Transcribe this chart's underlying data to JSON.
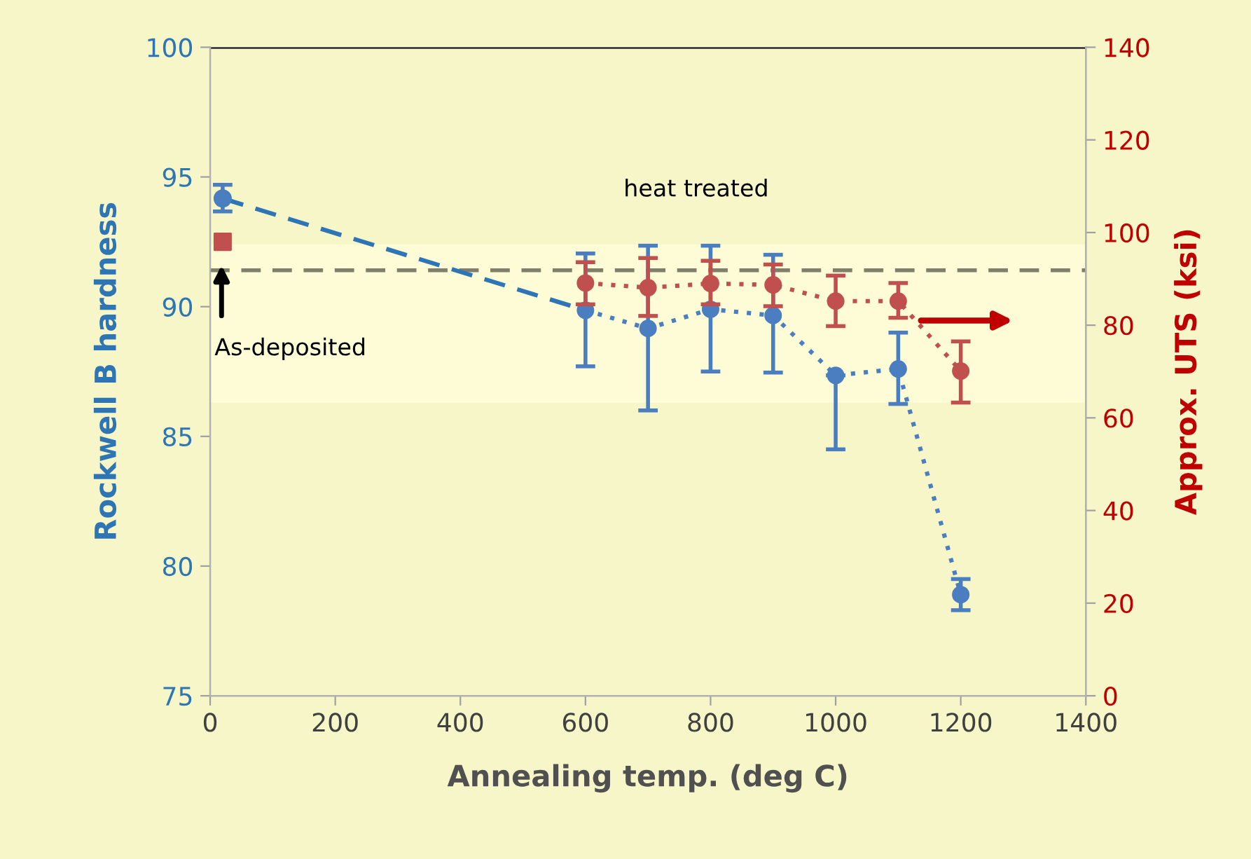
{
  "chart_data": {
    "type": "line",
    "xlabel": "Annealing temp. (deg C)",
    "ylabel": "Rockwell B hardness",
    "y2label": "Approx. UTS (ksi)",
    "xlim": [
      0,
      1400
    ],
    "xticks": [
      0,
      200,
      400,
      600,
      800,
      1000,
      1200,
      1400
    ],
    "ylim": [
      75,
      100
    ],
    "yticks": [
      75,
      80,
      85,
      90,
      95,
      100
    ],
    "y2lim": [
      0,
      140
    ],
    "y2ticks": [
      0,
      20,
      40,
      60,
      80,
      100,
      120,
      140
    ],
    "grid": false,
    "legend": false,
    "series": [
      {
        "type": "line",
        "color": "#2e75b6",
        "x": [
          20,
          600
        ],
        "values": [
          94.17,
          89.86
        ],
        "line_style": "dashed",
        "marker": "none"
      },
      {
        "type": "scatter",
        "color": "#4a7ec0",
        "x": [
          20
        ],
        "values": [
          94.17
        ],
        "errors": [
          [
            93.67,
            94.7
          ]
        ],
        "marker": "circle"
      },
      {
        "color": "#4a7ec0",
        "x": [
          600,
          700,
          800,
          900,
          1000,
          1100,
          1200
        ],
        "values": [
          89.86,
          89.16,
          89.9,
          89.66,
          87.35,
          87.6,
          78.9
        ],
        "errors": [
          [
            87.7,
            92.05
          ],
          [
            86.0,
            92.35
          ],
          [
            87.5,
            92.35
          ],
          [
            87.46,
            92.0
          ],
          [
            84.5,
            87.35
          ],
          [
            86.25,
            89.0
          ],
          [
            78.3,
            79.5
          ]
        ],
        "line_style": "dotted",
        "marker": "circle"
      },
      {
        "type": "scatter",
        "axis": "y2",
        "color": "#c0504d",
        "x": [
          20
        ],
        "values": [
          98.0
        ],
        "marker": "square"
      },
      {
        "type": "line",
        "axis": "y2",
        "color": "#c0504d",
        "x": [
          600,
          700,
          800,
          900,
          1000,
          1100,
          1200
        ],
        "values": [
          89.1,
          88.1,
          89.0,
          88.7,
          85.2,
          85.2,
          70.1
        ],
        "errors": [
          [
            84.5,
            93.6
          ],
          [
            82.0,
            94.5
          ],
          [
            84.5,
            93.9
          ],
          [
            84.1,
            93.1
          ],
          [
            79.8,
            90.7
          ],
          [
            81.6,
            89.1
          ],
          [
            63.3,
            76.5
          ]
        ],
        "line_style": "dotted",
        "marker": "circle"
      }
    ],
    "ref_lines": [
      {
        "axis": "y",
        "value": 100,
        "color": "#000000",
        "line_style": "solid"
      },
      {
        "axis": "y",
        "value": 91.4,
        "color": "#7f7f6a",
        "line_style": "dashed"
      }
    ],
    "bands": [
      {
        "axis": "y",
        "from": 86.3,
        "to": 92.4,
        "color": "#fdfcd6"
      }
    ],
    "annotations": [
      "heat treated",
      "As-deposited"
    ]
  }
}
